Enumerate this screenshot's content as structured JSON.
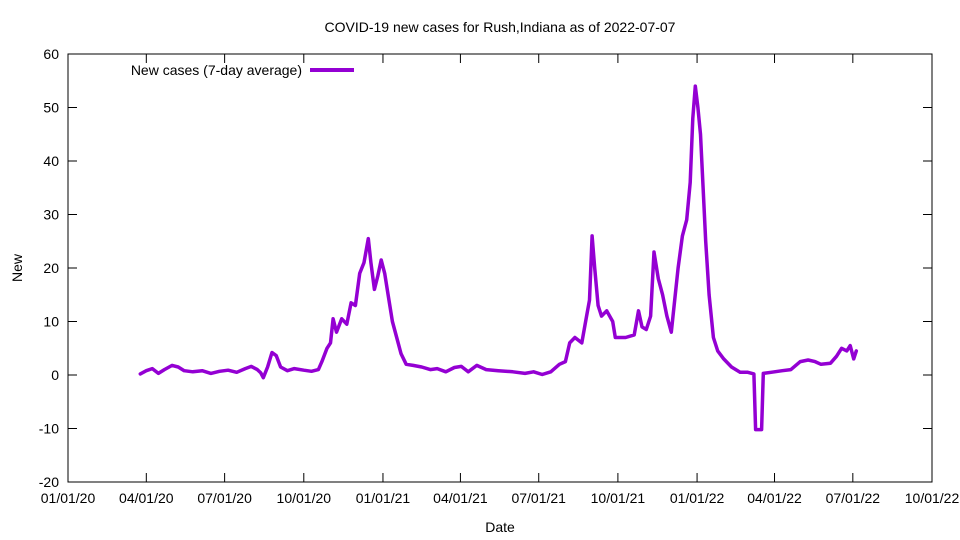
{
  "chart_data": {
    "type": "line",
    "title": "COVID-19 new cases for Rush,Indiana as of 2022-07-07",
    "xlabel": "Date",
    "ylabel": "New",
    "x_ticks": [
      "01/01/20",
      "04/01/20",
      "07/01/20",
      "10/01/20",
      "01/01/21",
      "04/01/21",
      "07/01/21",
      "10/01/21",
      "01/01/22",
      "04/01/22",
      "07/01/22",
      "10/01/22"
    ],
    "y_ticks": [
      "-20",
      "-10",
      "0",
      "10",
      "20",
      "30",
      "40",
      "50",
      "60"
    ],
    "xlim": [
      "2020-01-01",
      "2022-10-01"
    ],
    "ylim": [
      -20,
      60
    ],
    "legend_position": "top-left",
    "grid": false,
    "series": [
      {
        "name": "New cases (7-day average)",
        "color": "#9400d3",
        "points": [
          [
            "2020-03-25",
            0.2
          ],
          [
            "2020-04-01",
            0.8
          ],
          [
            "2020-04-08",
            1.2
          ],
          [
            "2020-04-15",
            0.3
          ],
          [
            "2020-04-22",
            1.0
          ],
          [
            "2020-05-01",
            1.8
          ],
          [
            "2020-05-08",
            1.5
          ],
          [
            "2020-05-15",
            0.8
          ],
          [
            "2020-05-25",
            0.6
          ],
          [
            "2020-06-05",
            0.8
          ],
          [
            "2020-06-15",
            0.3
          ],
          [
            "2020-06-25",
            0.7
          ],
          [
            "2020-07-05",
            0.9
          ],
          [
            "2020-07-15",
            0.5
          ],
          [
            "2020-07-25",
            1.2
          ],
          [
            "2020-08-01",
            1.6
          ],
          [
            "2020-08-08",
            1.0
          ],
          [
            "2020-08-12",
            0.4
          ],
          [
            "2020-08-15",
            -0.5
          ],
          [
            "2020-08-20",
            1.5
          ],
          [
            "2020-08-25",
            4.2
          ],
          [
            "2020-08-30",
            3.6
          ],
          [
            "2020-09-04",
            1.5
          ],
          [
            "2020-09-12",
            0.8
          ],
          [
            "2020-09-20",
            1.2
          ],
          [
            "2020-10-01",
            0.9
          ],
          [
            "2020-10-10",
            0.7
          ],
          [
            "2020-10-18",
            1.0
          ],
          [
            "2020-10-22",
            2.5
          ],
          [
            "2020-10-28",
            5.0
          ],
          [
            "2020-11-01",
            6.0
          ],
          [
            "2020-11-04",
            10.5
          ],
          [
            "2020-11-08",
            8.0
          ],
          [
            "2020-11-14",
            10.5
          ],
          [
            "2020-11-20",
            9.5
          ],
          [
            "2020-11-25",
            13.5
          ],
          [
            "2020-11-30",
            13.0
          ],
          [
            "2020-12-05",
            19.0
          ],
          [
            "2020-12-10",
            21.0
          ],
          [
            "2020-12-15",
            25.5
          ],
          [
            "2020-12-18",
            21.0
          ],
          [
            "2020-12-22",
            16.0
          ],
          [
            "2020-12-26",
            18.5
          ],
          [
            "2020-12-30",
            21.5
          ],
          [
            "2021-01-03",
            19.0
          ],
          [
            "2021-01-07",
            15.0
          ],
          [
            "2021-01-12",
            10.0
          ],
          [
            "2021-01-17",
            7.0
          ],
          [
            "2021-01-22",
            4.0
          ],
          [
            "2021-01-28",
            2.0
          ],
          [
            "2021-02-05",
            1.8
          ],
          [
            "2021-02-15",
            1.5
          ],
          [
            "2021-02-25",
            1.0
          ],
          [
            "2021-03-05",
            1.2
          ],
          [
            "2021-03-15",
            0.6
          ],
          [
            "2021-03-25",
            1.4
          ],
          [
            "2021-04-02",
            1.6
          ],
          [
            "2021-04-10",
            0.6
          ],
          [
            "2021-04-20",
            1.8
          ],
          [
            "2021-05-01",
            1.0
          ],
          [
            "2021-05-15",
            0.8
          ],
          [
            "2021-06-01",
            0.6
          ],
          [
            "2021-06-15",
            0.3
          ],
          [
            "2021-06-25",
            0.6
          ],
          [
            "2021-07-05",
            0.1
          ],
          [
            "2021-07-15",
            0.6
          ],
          [
            "2021-07-25",
            2.0
          ],
          [
            "2021-08-01",
            2.5
          ],
          [
            "2021-08-06",
            6.0
          ],
          [
            "2021-08-12",
            7.0
          ],
          [
            "2021-08-20",
            6.0
          ],
          [
            "2021-08-25",
            10.5
          ],
          [
            "2021-08-29",
            14.0
          ],
          [
            "2021-09-01",
            26.0
          ],
          [
            "2021-09-04",
            20.0
          ],
          [
            "2021-09-08",
            13.0
          ],
          [
            "2021-09-12",
            11.0
          ],
          [
            "2021-09-18",
            12.0
          ],
          [
            "2021-09-25",
            10.0
          ],
          [
            "2021-09-28",
            7.0
          ],
          [
            "2021-10-10",
            7.0
          ],
          [
            "2021-10-20",
            7.5
          ],
          [
            "2021-10-25",
            12.0
          ],
          [
            "2021-10-29",
            9.0
          ],
          [
            "2021-11-03",
            8.5
          ],
          [
            "2021-11-08",
            11.0
          ],
          [
            "2021-11-12",
            23.0
          ],
          [
            "2021-11-17",
            18.0
          ],
          [
            "2021-11-22",
            15.0
          ],
          [
            "2021-11-27",
            11.0
          ],
          [
            "2021-12-02",
            8.0
          ],
          [
            "2021-12-06",
            14.0
          ],
          [
            "2021-12-10",
            20.0
          ],
          [
            "2021-12-15",
            26.0
          ],
          [
            "2021-12-20",
            29.0
          ],
          [
            "2021-12-24",
            36.0
          ],
          [
            "2021-12-27",
            48.0
          ],
          [
            "2021-12-30",
            54.0
          ],
          [
            "2022-01-02",
            50.0
          ],
          [
            "2022-01-05",
            45.0
          ],
          [
            "2022-01-08",
            35.0
          ],
          [
            "2022-01-11",
            25.0
          ],
          [
            "2022-01-15",
            15.0
          ],
          [
            "2022-01-20",
            7.0
          ],
          [
            "2022-01-25",
            4.5
          ],
          [
            "2022-02-01",
            3.0
          ],
          [
            "2022-02-10",
            1.5
          ],
          [
            "2022-02-20",
            0.5
          ],
          [
            "2022-03-01",
            0.5
          ],
          [
            "2022-03-08",
            0.2
          ],
          [
            "2022-03-10",
            -10.2
          ],
          [
            "2022-03-17",
            -10.2
          ],
          [
            "2022-03-19",
            0.3
          ],
          [
            "2022-03-28",
            0.5
          ],
          [
            "2022-04-10",
            0.8
          ],
          [
            "2022-04-20",
            1.0
          ],
          [
            "2022-05-01",
            2.5
          ],
          [
            "2022-05-10",
            2.8
          ],
          [
            "2022-05-18",
            2.5
          ],
          [
            "2022-05-25",
            2.0
          ],
          [
            "2022-06-05",
            2.2
          ],
          [
            "2022-06-12",
            3.5
          ],
          [
            "2022-06-18",
            5.0
          ],
          [
            "2022-06-24",
            4.5
          ],
          [
            "2022-06-28",
            5.5
          ],
          [
            "2022-07-02",
            3.0
          ],
          [
            "2022-07-05",
            4.5
          ]
        ]
      }
    ]
  }
}
